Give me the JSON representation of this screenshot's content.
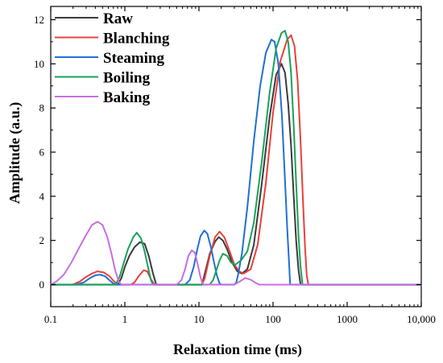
{
  "chart_data": {
    "type": "line",
    "title": "",
    "xlabel": "Relaxation time (ms)",
    "ylabel": "Amplitude (a.u.)",
    "xscale": "log",
    "xlim": [
      0.1,
      10000
    ],
    "ylim": [
      -1,
      12.6
    ],
    "xticks": [
      0.1,
      1,
      10,
      100,
      1000,
      10000
    ],
    "xtick_labels": [
      "0.1",
      "1",
      "10",
      "100",
      "1000",
      "10,000"
    ],
    "yticks": [
      0,
      2,
      4,
      6,
      8,
      10,
      12
    ],
    "ytick_labels": [
      "0",
      "2",
      "4",
      "6",
      "8",
      "10",
      "12"
    ],
    "grid": false,
    "legend_position": "top-left",
    "series": [
      {
        "name": "Raw",
        "color": "#3a3a3a",
        "points": [
          [
            0.1,
            0
          ],
          [
            0.5,
            0
          ],
          [
            0.8,
            0
          ],
          [
            0.9,
            0.3
          ],
          [
            1.0,
            0.8
          ],
          [
            1.15,
            1.3
          ],
          [
            1.35,
            1.7
          ],
          [
            1.6,
            1.92
          ],
          [
            1.85,
            1.85
          ],
          [
            2.1,
            1.3
          ],
          [
            2.4,
            0.5
          ],
          [
            2.65,
            0
          ],
          [
            3,
            0
          ],
          [
            8,
            0
          ],
          [
            11,
            0
          ],
          [
            12,
            0.5
          ],
          [
            14,
            1.4
          ],
          [
            16.5,
            1.95
          ],
          [
            18.5,
            2.15
          ],
          [
            21,
            2.0
          ],
          [
            24,
            1.6
          ],
          [
            28,
            1.0
          ],
          [
            33,
            0.6
          ],
          [
            38,
            0.5
          ],
          [
            45,
            0.7
          ],
          [
            55,
            1.8
          ],
          [
            70,
            4.5
          ],
          [
            90,
            7.6
          ],
          [
            110,
            9.5
          ],
          [
            130,
            10.0
          ],
          [
            145,
            9.6
          ],
          [
            160,
            8.2
          ],
          [
            175,
            6.3
          ],
          [
            190,
            4.0
          ],
          [
            205,
            2.0
          ],
          [
            220,
            0.7
          ],
          [
            235,
            0
          ],
          [
            300,
            0
          ],
          [
            10000,
            0
          ]
        ]
      },
      {
        "name": "Blanching",
        "color": "#e8403c",
        "points": [
          [
            0.1,
            0
          ],
          [
            0.2,
            0
          ],
          [
            0.25,
            0.15
          ],
          [
            0.3,
            0.35
          ],
          [
            0.36,
            0.5
          ],
          [
            0.43,
            0.6
          ],
          [
            0.52,
            0.55
          ],
          [
            0.62,
            0.38
          ],
          [
            0.7,
            0.18
          ],
          [
            0.8,
            0
          ],
          [
            1.2,
            0
          ],
          [
            1.35,
            0.1
          ],
          [
            1.55,
            0.4
          ],
          [
            1.8,
            0.65
          ],
          [
            2.0,
            0.6
          ],
          [
            2.25,
            0.25
          ],
          [
            2.5,
            0
          ],
          [
            8,
            0
          ],
          [
            11,
            0
          ],
          [
            12,
            0.3
          ],
          [
            14,
            1.3
          ],
          [
            16.5,
            2.15
          ],
          [
            19,
            2.4
          ],
          [
            22,
            2.15
          ],
          [
            26,
            1.5
          ],
          [
            30,
            0.9
          ],
          [
            35,
            0.6
          ],
          [
            40,
            0.5
          ],
          [
            50,
            0.7
          ],
          [
            62,
            1.8
          ],
          [
            80,
            4.6
          ],
          [
            100,
            7.8
          ],
          [
            125,
            10.1
          ],
          [
            155,
            11.1
          ],
          [
            175,
            11.3
          ],
          [
            195,
            10.8
          ],
          [
            215,
            9.2
          ],
          [
            235,
            6.5
          ],
          [
            255,
            3.6
          ],
          [
            270,
            1.7
          ],
          [
            285,
            0.4
          ],
          [
            300,
            0
          ],
          [
            10000,
            0
          ]
        ]
      },
      {
        "name": "Steaming",
        "color": "#1f6fd6",
        "points": [
          [
            0.1,
            0
          ],
          [
            0.22,
            0
          ],
          [
            0.28,
            0.1
          ],
          [
            0.34,
            0.3
          ],
          [
            0.4,
            0.42
          ],
          [
            0.46,
            0.45
          ],
          [
            0.54,
            0.38
          ],
          [
            0.62,
            0.2
          ],
          [
            0.7,
            0.05
          ],
          [
            0.75,
            0
          ],
          [
            5.5,
            0
          ],
          [
            6.5,
            0
          ],
          [
            7.5,
            0.2
          ],
          [
            8.5,
            0.8
          ],
          [
            9.5,
            1.6
          ],
          [
            10.5,
            2.2
          ],
          [
            11.8,
            2.45
          ],
          [
            13,
            2.3
          ],
          [
            14.5,
            1.7
          ],
          [
            16,
            1.0
          ],
          [
            17.5,
            0.4
          ],
          [
            19,
            0.05
          ],
          [
            20,
            0
          ],
          [
            30,
            0
          ],
          [
            32,
            0.1
          ],
          [
            34,
            0.5
          ],
          [
            38,
            1.4
          ],
          [
            45,
            3.5
          ],
          [
            55,
            6.5
          ],
          [
            67,
            9.0
          ],
          [
            80,
            10.5
          ],
          [
            95,
            11.1
          ],
          [
            105,
            11.0
          ],
          [
            118,
            10.0
          ],
          [
            132,
            7.6
          ],
          [
            145,
            4.7
          ],
          [
            155,
            2.6
          ],
          [
            165,
            0.9
          ],
          [
            170,
            0
          ],
          [
            10000,
            0
          ]
        ]
      },
      {
        "name": "Boiling",
        "color": "#16a35a",
        "points": [
          [
            0.1,
            0
          ],
          [
            0.75,
            0
          ],
          [
            0.85,
            0.35
          ],
          [
            0.95,
            0.9
          ],
          [
            1.1,
            1.6
          ],
          [
            1.3,
            2.15
          ],
          [
            1.45,
            2.35
          ],
          [
            1.65,
            2.1
          ],
          [
            1.85,
            1.5
          ],
          [
            2.05,
            0.8
          ],
          [
            2.25,
            0.2
          ],
          [
            2.4,
            0
          ],
          [
            14,
            0
          ],
          [
            15.5,
            0.2
          ],
          [
            17,
            0.6
          ],
          [
            19,
            1.1
          ],
          [
            21,
            1.4
          ],
          [
            24,
            1.3
          ],
          [
            27,
            1.0
          ],
          [
            31,
            0.9
          ],
          [
            37,
            1.1
          ],
          [
            45,
            1.5
          ],
          [
            55,
            2.8
          ],
          [
            70,
            5.5
          ],
          [
            90,
            8.7
          ],
          [
            110,
            10.7
          ],
          [
            130,
            11.4
          ],
          [
            145,
            11.5
          ],
          [
            160,
            11.0
          ],
          [
            175,
            9.6
          ],
          [
            190,
            7.2
          ],
          [
            205,
            4.6
          ],
          [
            220,
            2.3
          ],
          [
            235,
            0.8
          ],
          [
            250,
            0
          ],
          [
            10000,
            0
          ]
        ]
      },
      {
        "name": "Baking",
        "color": "#c96ee0",
        "points": [
          [
            0.1,
            0
          ],
          [
            0.12,
            0.15
          ],
          [
            0.15,
            0.45
          ],
          [
            0.19,
            1.0
          ],
          [
            0.24,
            1.65
          ],
          [
            0.3,
            2.25
          ],
          [
            0.36,
            2.7
          ],
          [
            0.43,
            2.85
          ],
          [
            0.5,
            2.7
          ],
          [
            0.58,
            2.15
          ],
          [
            0.66,
            1.4
          ],
          [
            0.74,
            0.65
          ],
          [
            0.83,
            0.12
          ],
          [
            0.9,
            0
          ],
          [
            5,
            0
          ],
          [
            5.8,
            0.2
          ],
          [
            6.5,
            0.7
          ],
          [
            7.2,
            1.3
          ],
          [
            8,
            1.55
          ],
          [
            8.8,
            1.45
          ],
          [
            9.5,
            1.0
          ],
          [
            10.3,
            0.45
          ],
          [
            11,
            0.1
          ],
          [
            11.5,
            0
          ],
          [
            30,
            0
          ],
          [
            36,
            0.15
          ],
          [
            42,
            0.3
          ],
          [
            50,
            0.22
          ],
          [
            58,
            0.08
          ],
          [
            65,
            0
          ],
          [
            10000,
            0
          ]
        ]
      }
    ]
  }
}
